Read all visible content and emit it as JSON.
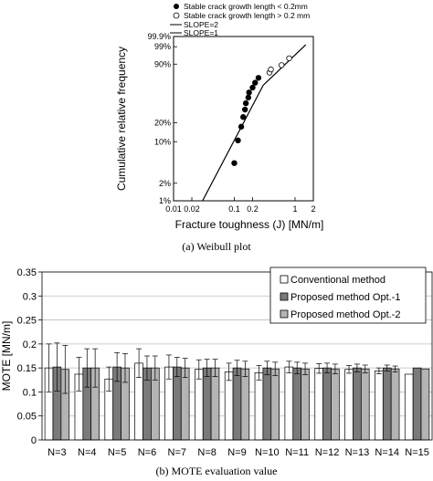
{
  "chart_data": [
    {
      "type": "scatter",
      "xlabel": "Fracture toughness (J) [MN/m]",
      "ylabel": "Cumulative relative frequency",
      "xscale": "log",
      "yscale": "weibull",
      "xlim": [
        0.01,
        2
      ],
      "ylim": [
        1,
        99.9
      ],
      "x_tick_labels": [
        "0.01",
        "0.02",
        "0.1",
        "0.2",
        "1",
        "2"
      ],
      "x_ticks": [
        0.01,
        0.02,
        0.1,
        0.2,
        1,
        2
      ],
      "y_tick_labels": [
        "99.9%",
        "99%",
        "90%",
        "20%",
        "10%",
        "2%",
        "1%"
      ],
      "y_ticks": [
        99.9,
        99,
        90,
        20,
        10,
        2,
        1
      ],
      "legend": {
        "placement": "top",
        "entries": [
          "Stable crack growth length < 0.2mm",
          "Stable crack growth length > 0.2 mm",
          "SLOPE=2",
          "SLOPE=1"
        ]
      },
      "series": [
        {
          "name": "Stable crack growth length < 0.2mm",
          "marker": "filled",
          "points": [
            [
              0.1,
              4.4
            ],
            [
              0.115,
              10.5
            ],
            [
              0.13,
              17.4
            ],
            [
              0.14,
              24.5
            ],
            [
              0.15,
              31.5
            ],
            [
              0.155,
              38.5
            ],
            [
              0.17,
              45.6
            ],
            [
              0.175,
              52.6
            ],
            [
              0.2,
              59.6
            ],
            [
              0.22,
              66.7
            ],
            [
              0.25,
              73.7
            ]
          ]
        },
        {
          "name": "Stable crack growth length > 0.2 mm",
          "marker": "open",
          "points": [
            [
              0.38,
              80.7
            ],
            [
              0.4,
              84.5
            ],
            [
              0.6,
              89.0
            ],
            [
              0.8,
              94.5
            ]
          ]
        }
      ],
      "lines": [
        {
          "name": "SLOPE=2",
          "points": [
            [
              0.03,
              1.0
            ],
            [
              0.3,
              63.2
            ]
          ]
        },
        {
          "name": "SLOPE=1",
          "points": [
            [
              0.3,
              63.2
            ],
            [
              1.5,
              99.3
            ]
          ]
        }
      ],
      "caption": "(a) Weibull plot"
    },
    {
      "type": "bar",
      "ylabel": "MOTE [MN/m]",
      "ylim": [
        0,
        0.35
      ],
      "y_tick_labels": [
        "0",
        "0.05",
        "0.1",
        "0.15",
        "0.2",
        "0.25",
        "0.3",
        "0.35"
      ],
      "y_ticks": [
        0,
        0.05,
        0.1,
        0.15,
        0.2,
        0.25,
        0.3,
        0.35
      ],
      "grid": true,
      "legend_placement": "top-right",
      "categories": [
        "N=3",
        "N=4",
        "N=5",
        "N=6",
        "N=7",
        "N=8",
        "N=9",
        "N=10",
        "N=11",
        "N=12",
        "N=13",
        "N=14",
        "N=15"
      ],
      "series": [
        {
          "name": "Conventional method",
          "color": "#ffffff",
          "values": [
            0.15,
            0.137,
            0.127,
            0.16,
            0.152,
            0.147,
            0.142,
            0.14,
            0.152,
            0.149,
            0.147,
            0.144,
            0.137
          ],
          "errors": [
            0.05,
            0.035,
            0.025,
            0.03,
            0.025,
            0.02,
            0.018,
            0.015,
            0.012,
            0.01,
            0.008,
            0.006,
            0.0
          ]
        },
        {
          "name": "Proposed method Opt.-1",
          "color": "#7a7a7a",
          "values": [
            0.152,
            0.15,
            0.152,
            0.15,
            0.152,
            0.15,
            0.15,
            0.15,
            0.15,
            0.15,
            0.15,
            0.15,
            0.15
          ],
          "errors": [
            0.05,
            0.04,
            0.03,
            0.025,
            0.02,
            0.018,
            0.016,
            0.014,
            0.012,
            0.01,
            0.008,
            0.006,
            0.0
          ]
        },
        {
          "name": "Proposed method Opt.-2",
          "color": "#b4b4b4",
          "values": [
            0.147,
            0.15,
            0.15,
            0.15,
            0.15,
            0.15,
            0.148,
            0.148,
            0.148,
            0.148,
            0.148,
            0.148,
            0.148
          ],
          "errors": [
            0.05,
            0.04,
            0.03,
            0.025,
            0.02,
            0.018,
            0.016,
            0.014,
            0.012,
            0.01,
            0.008,
            0.006,
            0.0
          ]
        }
      ],
      "caption": "(b) MOTE evaluation value"
    }
  ]
}
